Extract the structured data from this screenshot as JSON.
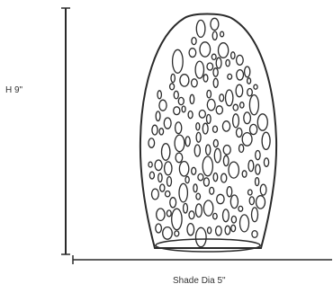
{
  "dimensions": {
    "height_label": "H 9\"",
    "width_label": "Shade Dia 5\""
  },
  "colors": {
    "line": "#2a2a2a",
    "background": "#ffffff"
  },
  "icons": {
    "shade": "glass-pendant-shade-icon"
  }
}
